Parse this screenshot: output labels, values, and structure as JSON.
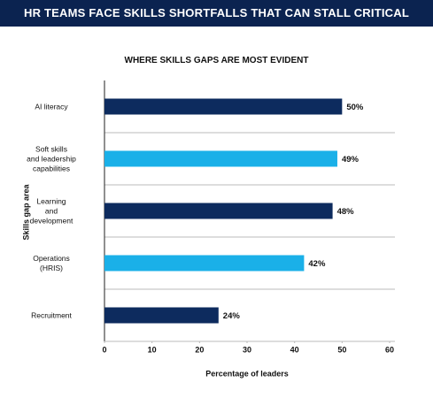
{
  "chart_data": {
    "type": "barh",
    "title": "HR TEAMS FACE SKILLS SHORTFALLS THAT CAN STALL CRITICAL INITIATIVES",
    "subtitle": "WHERE SKILLS GAPS ARE MOST EVIDENT",
    "x_label": "Percentage of leaders",
    "y_label": "Skills gap area",
    "categories": [
      "AI literacy",
      "Soft skills\nand leadership\ncapabilities",
      "Learning\nand\ndevelopment",
      "Operations\n(HRIS)",
      "Recruitment"
    ],
    "values": [
      50,
      49,
      48,
      42,
      24
    ],
    "value_labels": [
      "50%",
      "49%",
      "48%",
      "42%",
      "24%"
    ],
    "colors": [
      "#0d2b5e",
      "#1ab0e8",
      "#0d2b5e",
      "#1ab0e8",
      "#0d2b5e"
    ],
    "xlim": [
      0,
      60
    ],
    "xticks": [
      0,
      10,
      20,
      30,
      40,
      50,
      60
    ]
  }
}
